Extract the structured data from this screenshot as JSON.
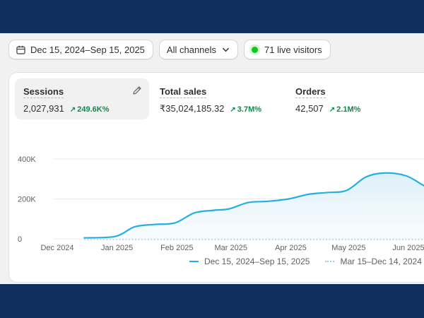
{
  "toolbar": {
    "date_range": "Dec 15, 2024–Sep 15, 2025",
    "channel": "All channels",
    "live_visitors": "71 live visitors"
  },
  "metrics": [
    {
      "label": "Sessions",
      "value": "2,027,931",
      "change": "249.6K%"
    },
    {
      "label": "Total sales",
      "value": "₹35,024,185.32",
      "change": "3.7M%"
    },
    {
      "label": "Orders",
      "value": "42,507",
      "change": "2.1M%"
    }
  ],
  "colors": {
    "accent": "#28aee3",
    "positive": "#0f8a4c",
    "live": "#1bc21b"
  },
  "chart_data": {
    "type": "area",
    "y_ticks": [
      "400K",
      "200K",
      "0"
    ],
    "x_ticks": [
      "Dec 2024",
      "Jan 2025",
      "Feb 2025",
      "Mar 2025",
      "Apr 2025",
      "May 2025",
      "Jun 2025"
    ],
    "ylim": [
      0,
      400000
    ],
    "grid": true,
    "series": [
      {
        "name": "Dec 15, 2024–Sep 15, 2025",
        "style": "solid",
        "x": [
          "2024-12-15",
          "2024-12-31",
          "2025-01-10",
          "2025-01-20",
          "2025-01-31",
          "2025-02-10",
          "2025-02-20",
          "2025-02-28",
          "2025-03-10",
          "2025-03-20",
          "2025-03-31",
          "2025-04-10",
          "2025-04-20",
          "2025-04-30",
          "2025-05-10",
          "2025-05-20",
          "2025-05-31",
          "2025-06-10",
          "2025-06-15"
        ],
        "values": [
          5000,
          12000,
          60000,
          72000,
          80000,
          130000,
          143000,
          150000,
          182000,
          188000,
          200000,
          223000,
          232000,
          243000,
          310000,
          330000,
          315000,
          262000,
          258000
        ]
      },
      {
        "name": "Mar 15–Dec 14, 2024",
        "style": "dotted",
        "x": [
          "2024-12-15",
          "2025-06-15"
        ],
        "values": [
          0,
          0
        ]
      }
    ]
  }
}
